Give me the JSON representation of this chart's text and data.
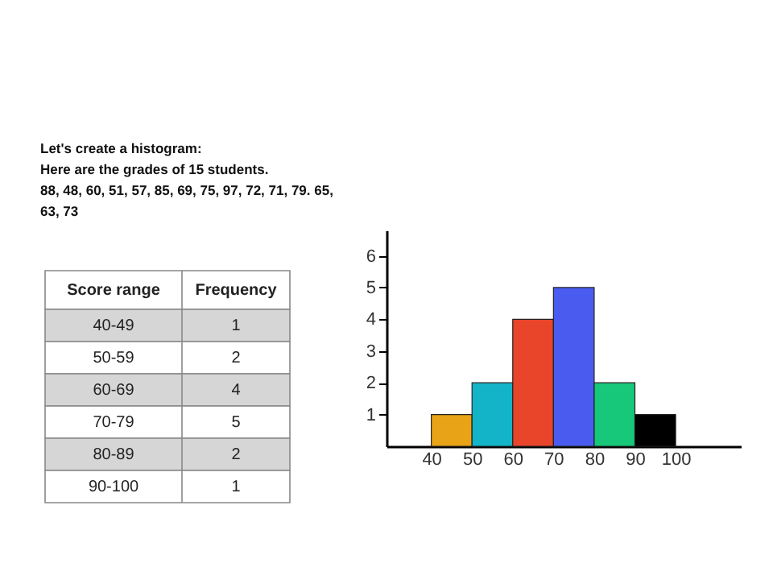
{
  "chart_data": {
    "type": "histogram",
    "annotations": [
      "Let's create a histogram:",
      "Here are the grades of 15 students.",
      "88, 48, 60, 51, 57, 85, 69, 75, 97, 72, 71, 79. 65,",
      "63, 73",
      "Score range",
      "Frequency",
      "40-49",
      "1",
      "50-59",
      "2",
      "60-69",
      "4",
      "70-79",
      "5",
      "80-89",
      "2",
      "90-100",
      "1"
    ],
    "bins": [
      40,
      50,
      60,
      70,
      80,
      90,
      100
    ],
    "values": [
      1,
      2,
      4,
      5,
      2,
      1
    ],
    "colors": [
      "#e8a317",
      "#13b4c8",
      "#e8452b",
      "#4a5cf0",
      "#17c77a",
      "#000000"
    ],
    "xlim": [
      29,
      116
    ],
    "ylim": [
      0,
      6.8
    ],
    "xticks": [
      40,
      50,
      60,
      70,
      80,
      90,
      100
    ],
    "yticks": [
      1,
      2,
      3,
      4,
      5,
      6
    ],
    "grid": false,
    "legend": false
  }
}
